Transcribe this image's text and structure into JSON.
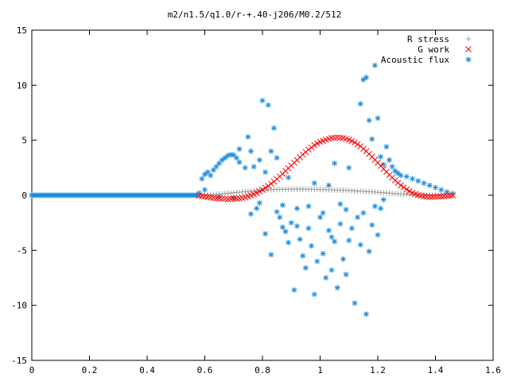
{
  "chart_data": {
    "type": "scatter",
    "title": "m2/n1.5/q1.0/r-+.40-j206/M0.2/512",
    "xlabel": "",
    "ylabel": "",
    "xlim": [
      0,
      1.6
    ],
    "ylim": [
      -15,
      15
    ],
    "x_ticks": [
      {
        "value": 0,
        "label": "0"
      },
      {
        "value": 0.2,
        "label": "0.2"
      },
      {
        "value": 0.4,
        "label": "0.4"
      },
      {
        "value": 0.6,
        "label": "0.6"
      },
      {
        "value": 0.8,
        "label": "0.8"
      },
      {
        "value": 1.0,
        "label": "1"
      },
      {
        "value": 1.2,
        "label": "1.2"
      },
      {
        "value": 1.4,
        "label": "1.4"
      },
      {
        "value": 1.6,
        "label": "1.6"
      }
    ],
    "y_ticks": [
      {
        "value": -15,
        "label": "-15"
      },
      {
        "value": -10,
        "label": "-10"
      },
      {
        "value": -5,
        "label": "-5"
      },
      {
        "value": 0,
        "label": "0"
      },
      {
        "value": 5,
        "label": "5"
      },
      {
        "value": 10,
        "label": "10"
      },
      {
        "value": 15,
        "label": "15"
      }
    ],
    "grid": false,
    "legend_position": "top-right",
    "series": [
      {
        "name": "R stress",
        "marker": "plus",
        "color": "#a0a0a0",
        "points": [
          [
            0.58,
            0.0
          ],
          [
            0.6,
            0.02
          ],
          [
            0.62,
            0.05
          ],
          [
            0.64,
            0.09
          ],
          [
            0.66,
            0.13
          ],
          [
            0.68,
            0.18
          ],
          [
            0.7,
            0.23
          ],
          [
            0.72,
            0.28
          ],
          [
            0.74,
            0.33
          ],
          [
            0.76,
            0.38
          ],
          [
            0.78,
            0.42
          ],
          [
            0.8,
            0.46
          ],
          [
            0.82,
            0.49
          ],
          [
            0.84,
            0.52
          ],
          [
            0.86,
            0.54
          ],
          [
            0.88,
            0.55
          ],
          [
            0.9,
            0.56
          ],
          [
            0.92,
            0.56
          ],
          [
            0.94,
            0.56
          ],
          [
            0.96,
            0.55
          ],
          [
            0.98,
            0.54
          ],
          [
            1.0,
            0.53
          ],
          [
            1.02,
            0.51
          ],
          [
            1.04,
            0.49
          ],
          [
            1.06,
            0.47
          ],
          [
            1.08,
            0.45
          ],
          [
            1.1,
            0.43
          ],
          [
            1.12,
            0.4
          ],
          [
            1.14,
            0.37
          ],
          [
            1.16,
            0.34
          ],
          [
            1.18,
            0.31
          ],
          [
            1.2,
            0.27
          ],
          [
            1.22,
            0.23
          ],
          [
            1.24,
            0.19
          ],
          [
            1.26,
            0.15
          ],
          [
            1.28,
            0.11
          ],
          [
            1.3,
            0.08
          ],
          [
            1.32,
            0.05
          ],
          [
            1.34,
            0.03
          ],
          [
            1.36,
            0.02
          ],
          [
            1.38,
            0.01
          ],
          [
            1.4,
            0.0
          ],
          [
            1.42,
            0.0
          ],
          [
            1.44,
            0.0
          ],
          [
            1.46,
            0.0
          ]
        ]
      },
      {
        "name": "G work",
        "marker": "cross",
        "color": "#ff0000",
        "points": [
          [
            0.58,
            -0.05
          ],
          [
            0.6,
            -0.12
          ],
          [
            0.62,
            -0.2
          ],
          [
            0.64,
            -0.27
          ],
          [
            0.66,
            -0.32
          ],
          [
            0.68,
            -0.34
          ],
          [
            0.7,
            -0.33
          ],
          [
            0.72,
            -0.28
          ],
          [
            0.74,
            -0.18
          ],
          [
            0.76,
            -0.02
          ],
          [
            0.78,
            0.2
          ],
          [
            0.8,
            0.5
          ],
          [
            0.82,
            0.85
          ],
          [
            0.84,
            1.25
          ],
          [
            0.86,
            1.7
          ],
          [
            0.88,
            2.2
          ],
          [
            0.9,
            2.7
          ],
          [
            0.92,
            3.2
          ],
          [
            0.94,
            3.7
          ],
          [
            0.96,
            4.15
          ],
          [
            0.98,
            4.55
          ],
          [
            1.0,
            4.85
          ],
          [
            1.02,
            5.05
          ],
          [
            1.04,
            5.2
          ],
          [
            1.06,
            5.25
          ],
          [
            1.08,
            5.2
          ],
          [
            1.1,
            5.05
          ],
          [
            1.12,
            4.8
          ],
          [
            1.14,
            4.45
          ],
          [
            1.16,
            4.0
          ],
          [
            1.18,
            3.5
          ],
          [
            1.2,
            2.95
          ],
          [
            1.22,
            2.4
          ],
          [
            1.24,
            1.85
          ],
          [
            1.26,
            1.35
          ],
          [
            1.28,
            0.9
          ],
          [
            1.3,
            0.52
          ],
          [
            1.32,
            0.22
          ],
          [
            1.34,
            0.02
          ],
          [
            1.36,
            -0.1
          ],
          [
            1.38,
            -0.15
          ],
          [
            1.4,
            -0.14
          ],
          [
            1.42,
            -0.1
          ],
          [
            1.44,
            -0.06
          ],
          [
            1.46,
            -0.02
          ]
        ]
      },
      {
        "name": "Acoustic flux",
        "marker": "star",
        "color": "#1a8bdc",
        "points": [
          [
            0.0,
            0.0
          ],
          [
            0.58,
            0.2
          ],
          [
            0.59,
            1.5
          ],
          [
            0.6,
            1.9
          ],
          [
            0.61,
            2.1
          ],
          [
            0.62,
            1.8
          ],
          [
            0.63,
            2.3
          ],
          [
            0.64,
            2.6
          ],
          [
            0.65,
            2.9
          ],
          [
            0.66,
            3.2
          ],
          [
            0.67,
            3.4
          ],
          [
            0.68,
            3.6
          ],
          [
            0.69,
            3.7
          ],
          [
            0.7,
            3.65
          ],
          [
            0.71,
            3.4
          ],
          [
            0.72,
            3.0
          ],
          [
            0.6,
            0.5
          ],
          [
            0.65,
            -0.1
          ],
          [
            0.7,
            -0.2
          ],
          [
            0.72,
            4.2
          ],
          [
            0.74,
            2.5
          ],
          [
            0.75,
            5.3
          ],
          [
            0.76,
            4.0
          ],
          [
            0.77,
            2.6
          ],
          [
            0.78,
            -1.2
          ],
          [
            0.76,
            -1.7
          ],
          [
            0.79,
            3.2
          ],
          [
            0.8,
            8.6
          ],
          [
            0.81,
            2.1
          ],
          [
            0.82,
            8.2
          ],
          [
            0.83,
            4.0
          ],
          [
            0.84,
            6.1
          ],
          [
            0.85,
            3.4
          ],
          [
            0.86,
            -2.0
          ],
          [
            0.87,
            -0.9
          ],
          [
            0.88,
            -3.3
          ],
          [
            0.89,
            1.6
          ],
          [
            0.9,
            -2.5
          ],
          [
            0.91,
            -8.6
          ],
          [
            0.92,
            -1.2
          ],
          [
            0.93,
            -4.0
          ],
          [
            0.94,
            -5.5
          ],
          [
            0.95,
            -6.6
          ],
          [
            0.96,
            -3.0
          ],
          [
            0.97,
            -4.6
          ],
          [
            0.98,
            -9.0
          ],
          [
            0.99,
            -6.0
          ],
          [
            1.0,
            -2.0
          ],
          [
            1.01,
            -5.3
          ],
          [
            1.02,
            -7.5
          ],
          [
            1.03,
            -3.2
          ],
          [
            1.04,
            -6.8
          ],
          [
            1.05,
            -4.2
          ],
          [
            1.06,
            -8.4
          ],
          [
            1.07,
            -2.6
          ],
          [
            1.08,
            -5.8
          ],
          [
            1.09,
            -7.2
          ],
          [
            1.1,
            -4.1
          ],
          [
            1.11,
            -3.0
          ],
          [
            1.12,
            -9.8
          ],
          [
            1.13,
            -2.0
          ],
          [
            1.14,
            -4.5
          ],
          [
            1.15,
            -1.6
          ],
          [
            1.16,
            -10.8
          ],
          [
            1.17,
            -5.1
          ],
          [
            1.18,
            -2.7
          ],
          [
            1.19,
            -1.0
          ],
          [
            1.2,
            -3.6
          ],
          [
            1.21,
            -1.2
          ],
          [
            1.22,
            -0.4
          ],
          [
            1.15,
            10.5
          ],
          [
            1.16,
            10.7
          ],
          [
            1.19,
            11.8
          ],
          [
            1.14,
            8.3
          ],
          [
            1.17,
            6.8
          ],
          [
            1.18,
            5.1
          ],
          [
            1.2,
            7.0
          ],
          [
            1.21,
            3.5
          ],
          [
            1.22,
            2.8
          ],
          [
            1.23,
            4.4
          ],
          [
            1.24,
            3.2
          ],
          [
            1.25,
            2.6
          ],
          [
            1.26,
            2.2
          ],
          [
            1.27,
            2.0
          ],
          [
            1.28,
            1.8
          ],
          [
            1.3,
            1.7
          ],
          [
            1.32,
            1.5
          ],
          [
            1.34,
            1.3
          ],
          [
            1.36,
            1.1
          ],
          [
            1.38,
            0.9
          ],
          [
            1.4,
            0.7
          ],
          [
            1.42,
            0.5
          ],
          [
            1.44,
            0.3
          ],
          [
            1.46,
            0.15
          ],
          [
            1.1,
            2.5
          ],
          [
            1.05,
            2.9
          ],
          [
            1.03,
            0.9
          ],
          [
            0.98,
            1.1
          ],
          [
            0.96,
            -1.0
          ],
          [
            0.92,
            -2.8
          ],
          [
            0.89,
            -4.3
          ],
          [
            0.87,
            -2.9
          ],
          [
            0.85,
            -1.5
          ],
          [
            0.83,
            -5.4
          ],
          [
            0.81,
            -3.5
          ],
          [
            0.79,
            -0.7
          ],
          [
            1.01,
            -1.6
          ],
          [
            1.04,
            -3.8
          ],
          [
            1.07,
            -0.8
          ],
          [
            1.09,
            -1.3
          ]
        ]
      }
    ]
  }
}
